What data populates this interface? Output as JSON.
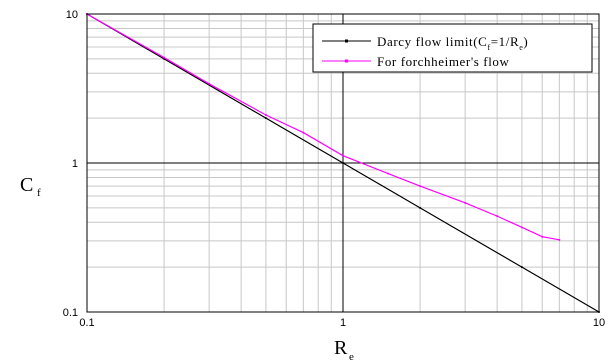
{
  "chart_data": {
    "type": "line",
    "xscale": "log",
    "yscale": "log",
    "xlim": [
      0.1,
      10
    ],
    "ylim": [
      0.1,
      10
    ],
    "grid": true,
    "legend_position": "top-right",
    "xlabel": {
      "main": "R",
      "sub": "e"
    },
    "ylabel": {
      "main": "C",
      "sub": "f"
    },
    "x_tick_labels": [
      "0.1",
      "1",
      "10"
    ],
    "y_tick_labels": [
      "0.1",
      "1",
      "10"
    ],
    "reference_lines": {
      "x": 1,
      "y": 1
    },
    "series": [
      {
        "name": "Darcy flow limit(Cf=1/Re)",
        "legend_parts": [
          "Darcy flow limit(C",
          "f",
          "=1/R",
          "e",
          ")"
        ],
        "color": "#000000",
        "x": [
          0.1,
          0.2,
          0.5,
          1,
          2,
          5,
          10
        ],
        "y": [
          10,
          5,
          2,
          1,
          0.5,
          0.2,
          0.1
        ]
      },
      {
        "name": "For forchheimer's flow",
        "legend_parts": [
          "For forchheimer's flow"
        ],
        "color": "#ff00ff",
        "x": [
          0.1,
          0.2,
          0.3,
          0.5,
          0.7,
          1,
          1.5,
          2,
          3,
          4,
          5,
          6,
          7
        ],
        "y": [
          10,
          5.1,
          3.4,
          2.1,
          1.6,
          1.12,
          0.85,
          0.7,
          0.54,
          0.44,
          0.37,
          0.32,
          0.305
        ]
      }
    ]
  }
}
